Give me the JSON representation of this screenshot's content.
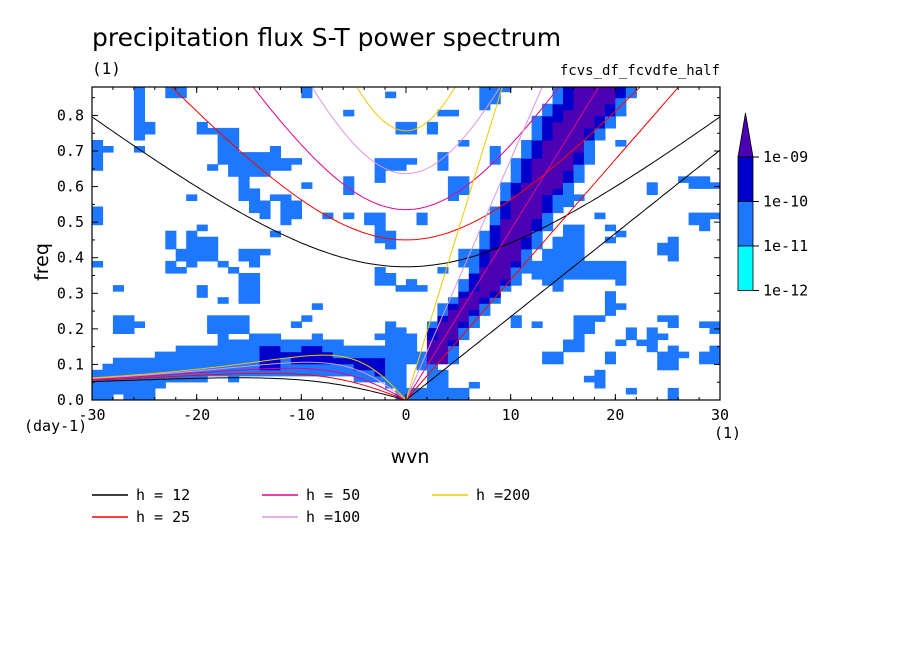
{
  "chart_data": {
    "type": "contour",
    "title": "precipitation flux S-T power spectrum",
    "units_label": "(1)",
    "variable_name": "fcvs_df_fcvdfe_half",
    "xlabel": "wvn",
    "ylabel": "freq",
    "x_units": "(1)",
    "y_units": "(day-1)",
    "xlim": [
      -30,
      30
    ],
    "ylim": [
      0,
      0.88
    ],
    "xticks": [
      -30,
      -20,
      -10,
      0,
      10,
      20,
      30
    ],
    "yticks": [
      0.0,
      0.1,
      0.2,
      0.3,
      0.4,
      0.5,
      0.6,
      0.7,
      0.8
    ],
    "xtick_labels": [
      "-30",
      "-20",
      "-10",
      "0",
      "10",
      "20",
      "30"
    ],
    "ytick_labels": [
      "0.0",
      "0.1",
      "0.2",
      "0.3",
      "0.4",
      "0.5",
      "0.6",
      "0.7",
      "0.8"
    ],
    "colorbar": {
      "labels": [
        "1e-09",
        "1e-10",
        "1e-11",
        "1e-12"
      ],
      "colors": [
        "#4b00b4",
        "#0000cd",
        "#1e78ff",
        "#00ffff"
      ]
    },
    "series": [
      {
        "name": "h = 12",
        "h": 12,
        "color": "#000000"
      },
      {
        "name": "h = 25",
        "h": 25,
        "color": "#ff0000"
      },
      {
        "name": "h = 50",
        "h": 50,
        "color": "#e6008c"
      },
      {
        "name": "h =100",
        "h": 100,
        "color": "#dc96dc"
      },
      {
        "name": "h =200",
        "h": 200,
        "color": "#f0c800"
      }
    ],
    "field_summary": {
      "kelvin_ridge": [
        [
          3,
          0.15
        ],
        [
          5,
          0.24
        ],
        [
          8,
          0.33
        ],
        [
          10,
          0.45
        ],
        [
          13,
          0.62
        ],
        [
          16,
          0.78
        ],
        [
          18,
          0.86
        ]
      ],
      "westward_band": [
        [
          -30,
          0.05
        ],
        [
          -20,
          0.1
        ],
        [
          -10,
          0.12
        ],
        [
          -5,
          0.08
        ],
        [
          0,
          0.01
        ]
      ]
    }
  }
}
